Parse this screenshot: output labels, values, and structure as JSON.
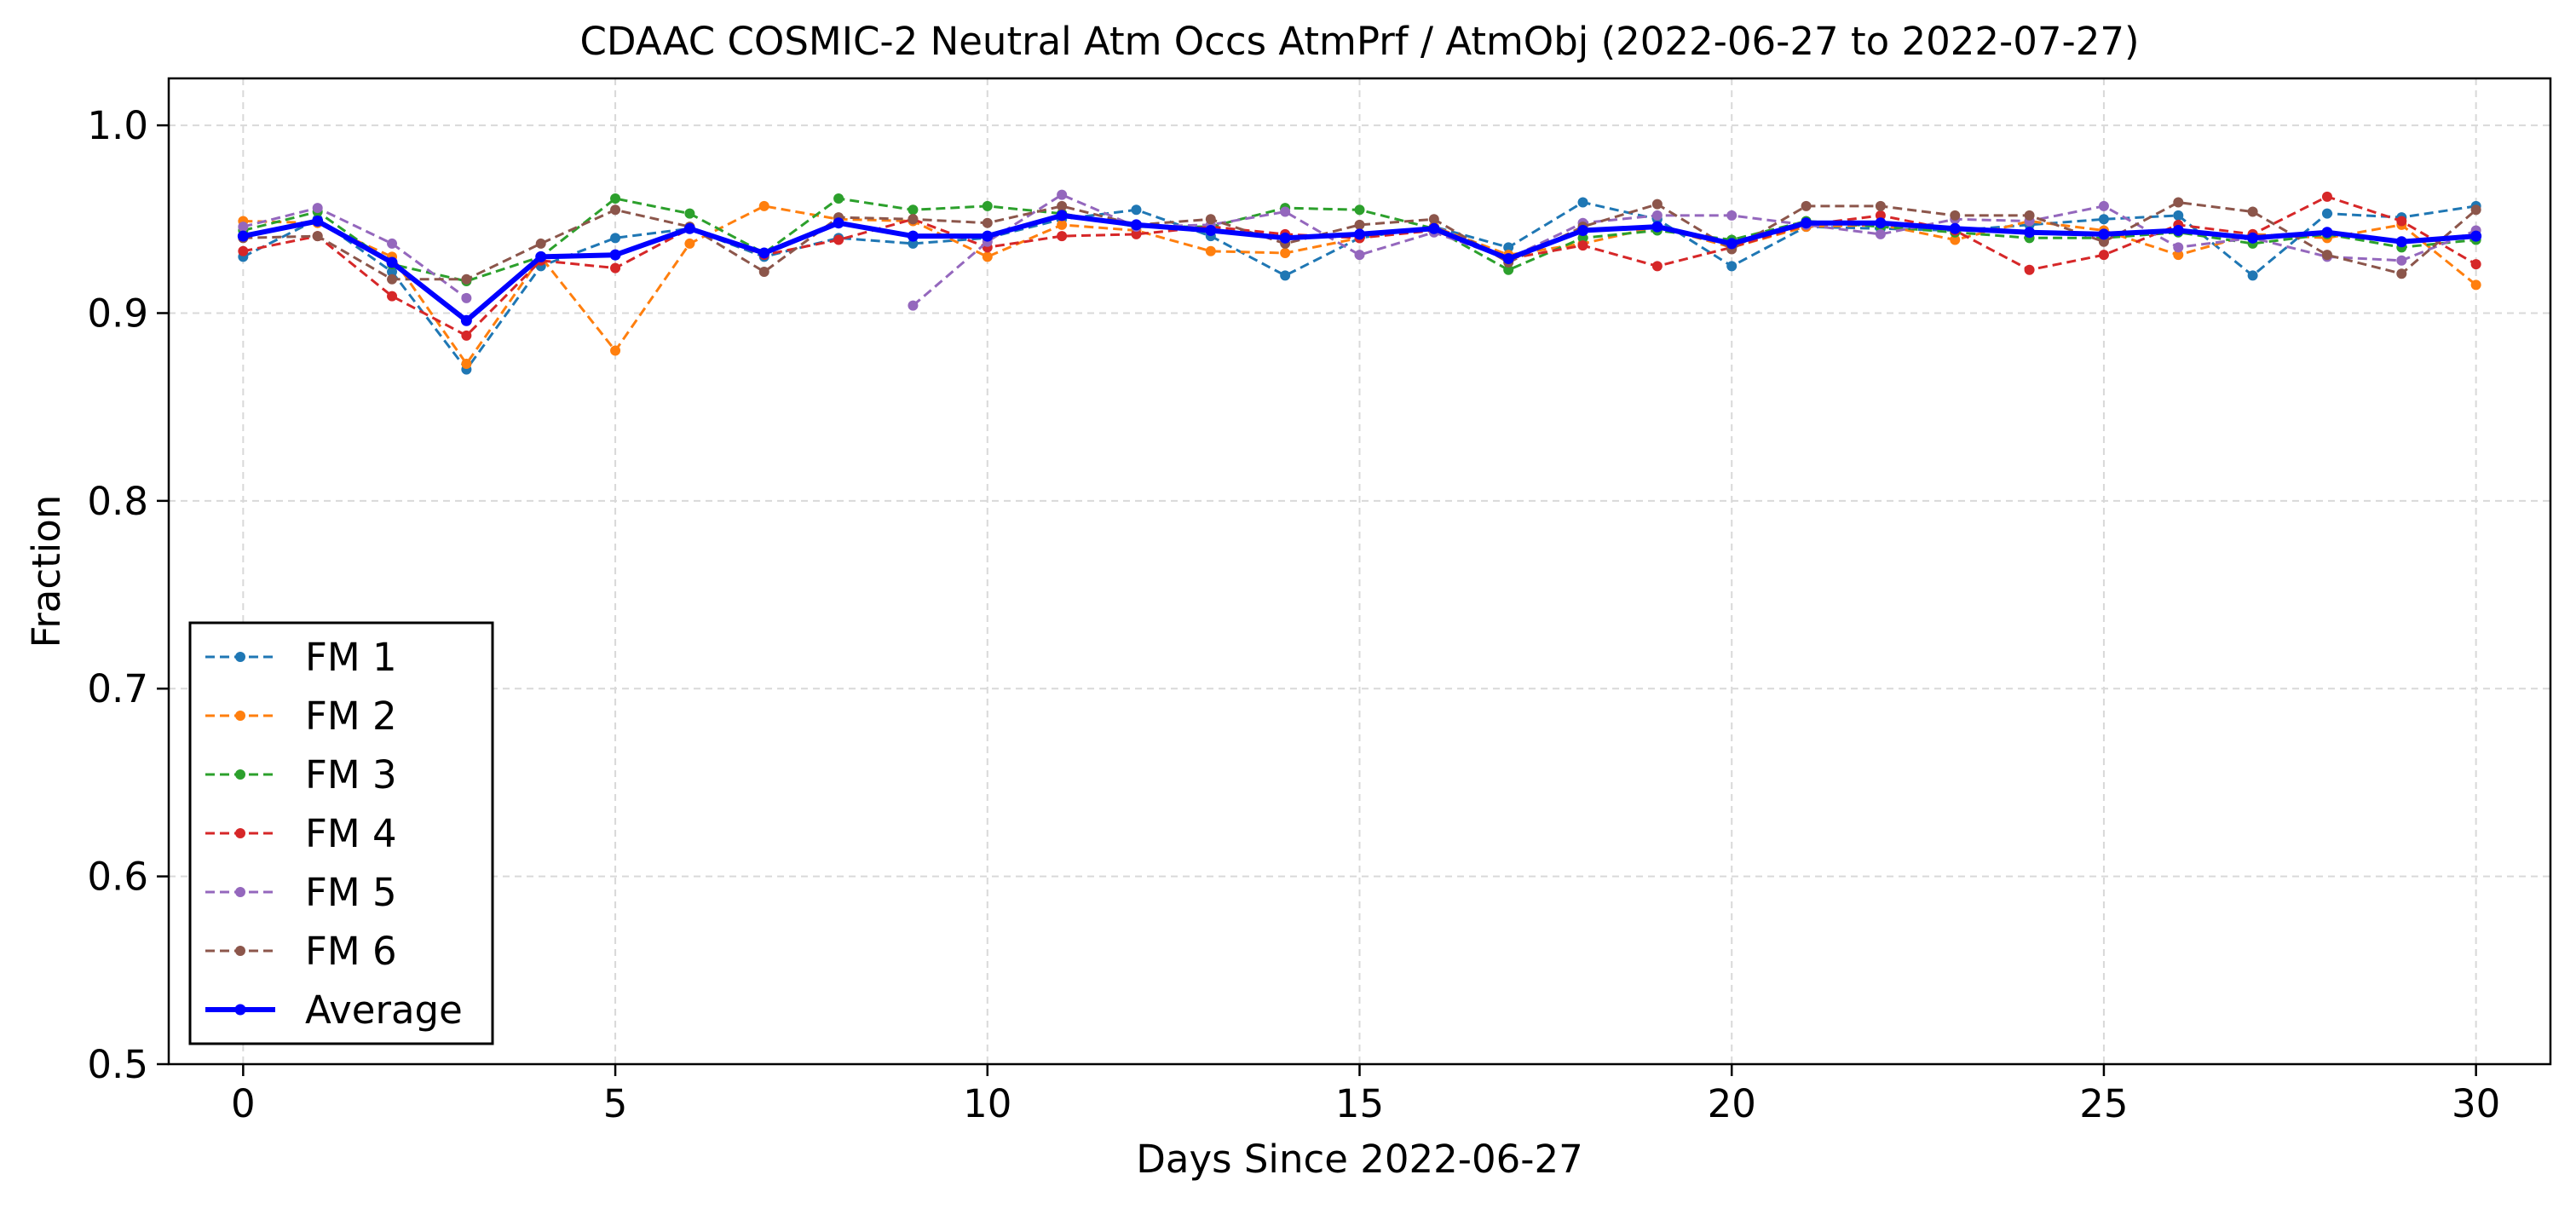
{
  "chart_data": {
    "type": "line",
    "title": "CDAAC COSMIC-2 Neutral Atm Occs AtmPrf / AtmObj (2022-06-27 to 2022-07-27)",
    "xlabel": "Days Since 2022-06-27",
    "ylabel": "Fraction",
    "xlim": [
      -1,
      31
    ],
    "ylim": [
      0.5,
      1.025
    ],
    "xticks": [
      0,
      5,
      10,
      15,
      20,
      25,
      30
    ],
    "yticks": [
      0.5,
      0.6,
      0.7,
      0.8,
      0.9,
      1.0
    ],
    "xtick_labels": [
      "0",
      "5",
      "10",
      "15",
      "20",
      "25",
      "30"
    ],
    "ytick_labels": [
      "0.5",
      "0.6",
      "0.7",
      "0.8",
      "0.9",
      "1.0"
    ],
    "grid": true,
    "legend_position": "lower-left",
    "x": [
      0,
      1,
      2,
      3,
      4,
      5,
      6,
      7,
      8,
      9,
      10,
      11,
      12,
      13,
      14,
      15,
      16,
      17,
      18,
      19,
      20,
      21,
      22,
      23,
      24,
      25,
      26,
      27,
      28,
      29,
      30
    ],
    "series": [
      {
        "name": "FM 1",
        "color": "#1f77b4",
        "style": "dashed",
        "values": [
          0.93,
          0.95,
          0.922,
          0.87,
          0.925,
          0.94,
          0.945,
          0.93,
          0.94,
          0.937,
          0.94,
          0.95,
          0.955,
          0.941,
          0.92,
          0.94,
          0.946,
          0.935,
          0.959,
          0.95,
          0.925,
          0.946,
          0.945,
          0.944,
          0.947,
          0.95,
          0.952,
          0.92,
          0.953,
          0.951,
          0.957
        ]
      },
      {
        "name": "FM 2",
        "color": "#ff7f0e",
        "style": "dashed",
        "values": [
          0.949,
          0.948,
          0.93,
          0.873,
          0.93,
          0.88,
          0.937,
          0.957,
          0.95,
          0.949,
          0.93,
          0.947,
          0.944,
          0.933,
          0.932,
          0.94,
          0.946,
          0.931,
          0.937,
          0.946,
          0.935,
          0.946,
          0.947,
          0.939,
          0.949,
          0.944,
          0.931,
          0.942,
          0.94,
          0.947,
          0.915
        ]
      },
      {
        "name": "FM 3",
        "color": "#2ca02c",
        "style": "dashed",
        "values": [
          0.944,
          0.954,
          0.926,
          0.917,
          0.93,
          0.961,
          0.953,
          0.932,
          0.961,
          0.955,
          0.957,
          0.953,
          0.946,
          0.946,
          0.956,
          0.955,
          0.945,
          0.923,
          0.94,
          0.944,
          0.939,
          0.949,
          0.946,
          0.943,
          0.94,
          0.94,
          0.943,
          0.937,
          0.942,
          0.935,
          0.939
        ]
      },
      {
        "name": "FM 4",
        "color": "#d62728",
        "style": "dashed",
        "values": [
          0.933,
          0.941,
          0.909,
          0.888,
          0.928,
          0.924,
          0.945,
          0.931,
          0.939,
          0.95,
          0.935,
          0.941,
          0.942,
          0.946,
          0.942,
          0.94,
          0.944,
          0.929,
          0.936,
          0.925,
          0.935,
          0.947,
          0.952,
          0.944,
          0.923,
          0.931,
          0.947,
          0.942,
          0.962,
          0.949,
          0.926
        ]
      },
      {
        "name": "FM 5",
        "color": "#9467bd",
        "style": "dashed",
        "values": [
          0.946,
          0.956,
          0.937,
          0.908,
          null,
          null,
          null,
          null,
          null,
          0.904,
          0.938,
          0.963,
          0.946,
          0.947,
          0.954,
          0.931,
          0.943,
          0.929,
          0.948,
          0.952,
          0.952,
          0.947,
          0.942,
          0.95,
          0.949,
          0.957,
          0.935,
          0.94,
          0.93,
          0.928,
          0.944
        ]
      },
      {
        "name": "FM 6",
        "color": "#8c564b",
        "style": "dashed",
        "values": [
          0.94,
          0.941,
          0.918,
          0.918,
          0.937,
          0.955,
          0.946,
          0.922,
          0.951,
          0.95,
          0.948,
          0.957,
          0.947,
          0.95,
          0.937,
          0.947,
          0.95,
          0.927,
          0.946,
          0.958,
          0.934,
          0.957,
          0.957,
          0.952,
          0.952,
          0.938,
          0.959,
          0.954,
          0.931,
          0.921,
          0.955
        ]
      },
      {
        "name": "Average",
        "color": "#0000ff",
        "style": "solid",
        "values": [
          0.941,
          0.949,
          0.927,
          0.896,
          0.93,
          0.931,
          0.945,
          0.932,
          0.948,
          0.941,
          0.941,
          0.952,
          0.947,
          0.944,
          0.94,
          0.942,
          0.945,
          0.929,
          0.944,
          0.946,
          0.937,
          0.948,
          0.948,
          0.945,
          0.943,
          0.942,
          0.944,
          0.94,
          0.943,
          0.938,
          0.941
        ]
      }
    ]
  }
}
